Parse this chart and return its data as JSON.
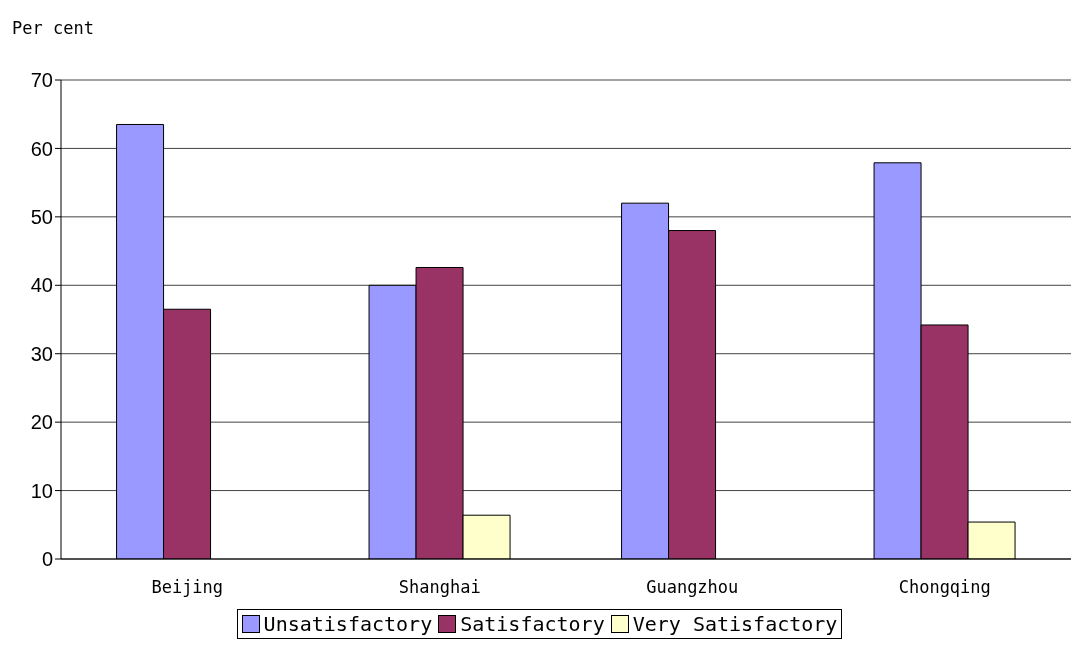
{
  "chart_data": {
    "type": "bar",
    "ylabel": "Per cent",
    "categories": [
      "Beijing",
      "Shanghai",
      "Guangzhou",
      "Chongqing"
    ],
    "series": [
      {
        "name": "Unsatisfactory",
        "color": "#9999ff",
        "values": [
          63.5,
          40.0,
          52.0,
          57.9
        ]
      },
      {
        "name": "Satisfactory",
        "color": "#993366",
        "values": [
          36.5,
          42.6,
          48.0,
          34.2
        ]
      },
      {
        "name": "Very Satisfactory",
        "color": "#ffffcc",
        "values": [
          null,
          6.4,
          null,
          5.4
        ]
      }
    ],
    "ylim": [
      0,
      70
    ],
    "yticks": [
      0,
      10,
      20,
      30,
      40,
      50,
      60,
      70
    ],
    "grid": "y",
    "legend": "bottom"
  }
}
